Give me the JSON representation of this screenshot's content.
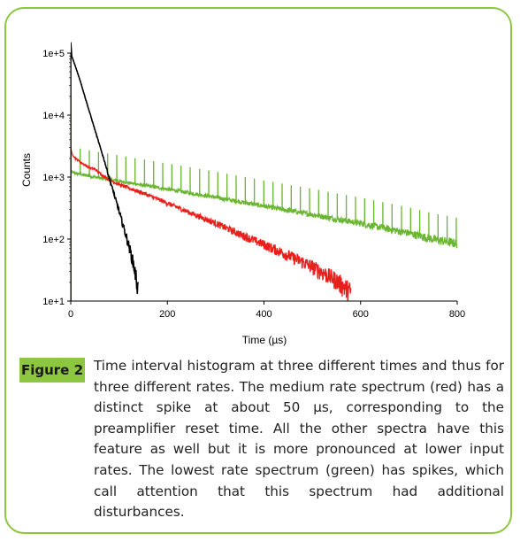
{
  "figure": {
    "label": "Figure 2",
    "caption": "Time interval histogram at three different times and thus for three different rates. The medium rate spectrum (red) has a distinct spike at about 50 µs, corresponding to the preamplifier reset time. All the other spectra have this feature as well but it is more pronounced at lower input rates. The lowest rate spectrum (green) has spikes, which call attention that this spectrum had additional disturbances."
  },
  "colors": {
    "frame": "#8dc63f",
    "label_bg": "#8dc63f",
    "black_series": "#000000",
    "red_series": "#e8201c",
    "green_series": "#6ab632"
  },
  "chart_data": {
    "type": "line",
    "title": "",
    "xlabel": "Time (µs)",
    "ylabel": "Counts",
    "xlim": [
      0,
      800
    ],
    "ylim": [
      10,
      100000
    ],
    "yscale": "log",
    "x_ticks": [
      "0",
      "200",
      "400",
      "600",
      "800"
    ],
    "y_ticks": [
      "1e+1",
      "1e+2",
      "1e+3",
      "1e+4",
      "1e+5"
    ],
    "grid": false,
    "legend": "none",
    "series": [
      {
        "color": "black",
        "description_rate": "high",
        "x": [
          0,
          2,
          10,
          20,
          30,
          40,
          50,
          60,
          70,
          80,
          90,
          100,
          110,
          120,
          130,
          140
        ],
        "y": [
          150000,
          90000,
          60000,
          35000,
          19000,
          10500,
          5800,
          3200,
          1800,
          950,
          520,
          280,
          150,
          80,
          40,
          15
        ]
      },
      {
        "color": "red",
        "description_rate": "medium",
        "x": [
          0,
          2,
          10,
          20,
          30,
          40,
          50,
          60,
          80,
          100,
          150,
          200,
          250,
          300,
          350,
          400,
          450,
          500,
          550,
          580
        ],
        "y": [
          3000,
          2400,
          2000,
          1750,
          1550,
          1400,
          1350,
          1150,
          900,
          760,
          550,
          380,
          260,
          180,
          120,
          82,
          55,
          36,
          22,
          14
        ]
      },
      {
        "color": "green",
        "description_rate": "low",
        "x": [
          0,
          2,
          10,
          50,
          100,
          150,
          200,
          250,
          300,
          350,
          400,
          450,
          500,
          550,
          600,
          650,
          700,
          750,
          800
        ],
        "y": [
          1300,
          1200,
          1150,
          1000,
          860,
          740,
          640,
          550,
          470,
          400,
          340,
          290,
          250,
          210,
          180,
          150,
          125,
          100,
          85
        ],
        "spike_spacing": 19
      }
    ]
  }
}
